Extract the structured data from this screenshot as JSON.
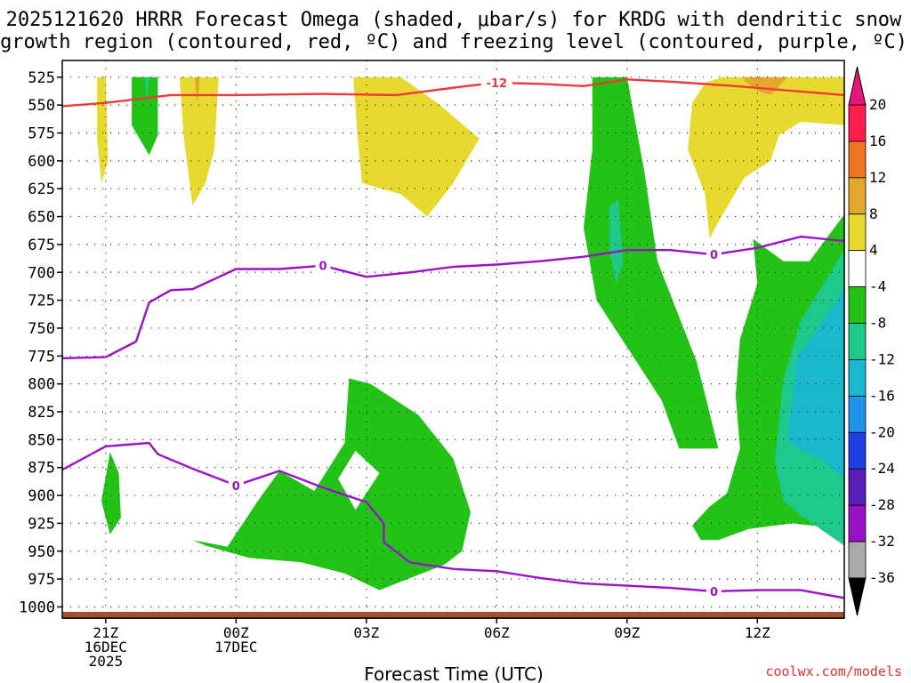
{
  "chart_data": {
    "type": "contour",
    "title_line1": "2025121620 HRRR Forecast Omega (shaded, μbar/s) for KRDG with dendritic snow",
    "title_line2": "growth region (contoured, red, ºC) and freezing level (contoured, purple, ºC)",
    "xlabel": "Forecast Time (UTC)",
    "credit": "coolwx.com/models",
    "y_unit": "hPa",
    "ylim": [
      1010,
      510
    ],
    "y_ticks": [
      525,
      550,
      575,
      600,
      625,
      650,
      675,
      700,
      725,
      750,
      775,
      800,
      825,
      850,
      875,
      900,
      925,
      950,
      975,
      1000
    ],
    "x_hours_range": [
      -1.0,
      17.0
    ],
    "x_ticks": [
      {
        "hour": 0,
        "lines": [
          "21Z",
          "16DEC",
          "2025"
        ]
      },
      {
        "hour": 3,
        "lines": [
          "00Z",
          "17DEC"
        ]
      },
      {
        "hour": 6,
        "lines": [
          "03Z"
        ]
      },
      {
        "hour": 9,
        "lines": [
          "06Z"
        ]
      },
      {
        "hour": 12,
        "lines": [
          "09Z"
        ]
      },
      {
        "hour": 15,
        "lines": [
          "12Z"
        ]
      }
    ],
    "colorbar": {
      "labels": [
        "20",
        "16",
        "12",
        "8",
        "4",
        "-4",
        "-8",
        "-12",
        "-16",
        "-20",
        "-24",
        "-28",
        "-32",
        "-36"
      ],
      "colors": [
        "#ff1f4f",
        "#ee7622",
        "#e3a72e",
        "#e8d92e",
        "#ffffff",
        "#22c316",
        "#1fc98c",
        "#1ab8cc",
        "#2094ea",
        "#1f3fe6",
        "#5a1fb8",
        "#9a11c8",
        "#a9a9a9"
      ],
      "top_arrow_color": "#e8157a",
      "bottom_arrow_color": "#000000"
    },
    "colors": {
      "dgz_line": "#ee3a3a",
      "freezing_line": "#9b12c8",
      "ground": "#a0522d",
      "up_weak": "#22c316",
      "up_moderate": "#1fc98c",
      "up_strong": "#1ab8cc",
      "down_weak": "#e8d92e",
      "down_moderate": "#e3a72e",
      "down_strong": "#ee7622"
    },
    "dgz_minus12_line": {
      "label": "-12",
      "label_at": [
        9.0,
        530
      ],
      "points": [
        [
          -1,
          551
        ],
        [
          0,
          548
        ],
        [
          1.5,
          541
        ],
        [
          3,
          541
        ],
        [
          5,
          540
        ],
        [
          6.7,
          541
        ],
        [
          8.3,
          533
        ],
        [
          9,
          530
        ],
        [
          10,
          531
        ],
        [
          11,
          533
        ],
        [
          12,
          527
        ],
        [
          13,
          529
        ],
        [
          14.5,
          533
        ],
        [
          17,
          541
        ]
      ]
    },
    "freezing_level_upper": {
      "label": "0",
      "label_positions": [
        [
          5.0,
          694
        ],
        [
          14.0,
          684
        ]
      ],
      "points": [
        [
          -1,
          777
        ],
        [
          0,
          776
        ],
        [
          0.7,
          762
        ],
        [
          1.0,
          727
        ],
        [
          1.5,
          716
        ],
        [
          2.0,
          715
        ],
        [
          3,
          697
        ],
        [
          4,
          697
        ],
        [
          5,
          694
        ],
        [
          6,
          704
        ],
        [
          7,
          700
        ],
        [
          8,
          695
        ],
        [
          9,
          693
        ],
        [
          10,
          690
        ],
        [
          11,
          686
        ],
        [
          12,
          680
        ],
        [
          13,
          680
        ],
        [
          14,
          684
        ],
        [
          15,
          678
        ],
        [
          16,
          668
        ],
        [
          17,
          672
        ]
      ]
    },
    "freezing_level_lower": {
      "label": "0",
      "label_positions": [
        [
          3.0,
          891
        ],
        [
          14.0,
          986
        ]
      ],
      "points": [
        [
          -1,
          877
        ],
        [
          0,
          856
        ],
        [
          1,
          853
        ],
        [
          1.2,
          863
        ],
        [
          2,
          876
        ],
        [
          3,
          891
        ],
        [
          4,
          878
        ],
        [
          5,
          893
        ],
        [
          6,
          906
        ],
        [
          6.4,
          925
        ],
        [
          6.4,
          942
        ],
        [
          7,
          960
        ],
        [
          8,
          966
        ],
        [
          9,
          968
        ],
        [
          10,
          974
        ],
        [
          11,
          979
        ],
        [
          12,
          981
        ],
        [
          13,
          983
        ],
        [
          14,
          986
        ],
        [
          15,
          985
        ],
        [
          16,
          985
        ],
        [
          17,
          992
        ]
      ]
    },
    "omega_regions": [
      {
        "name": "up-weak-a",
        "band": "up_weak",
        "points": [
          [
            -0.1,
            905
          ],
          [
            0.1,
            861
          ],
          [
            0.3,
            880
          ],
          [
            0.35,
            920
          ],
          [
            0.1,
            935
          ]
        ]
      },
      {
        "name": "up-weak-b",
        "band": "up_weak",
        "points": [
          [
            0.6,
            525
          ],
          [
            1.2,
            525
          ],
          [
            1.2,
            577
          ],
          [
            1.0,
            595
          ],
          [
            0.6,
            568
          ]
        ]
      },
      {
        "name": "up-weak-c",
        "band": "up_weak",
        "points": [
          [
            2.0,
            940
          ],
          [
            2.8,
            946
          ],
          [
            3.5,
            905
          ],
          [
            4.0,
            878
          ],
          [
            4.8,
            896
          ],
          [
            5.5,
            853
          ],
          [
            5.6,
            795
          ],
          [
            6.1,
            800
          ],
          [
            7.2,
            828
          ],
          [
            8.0,
            867
          ],
          [
            8.4,
            915
          ],
          [
            8.2,
            950
          ],
          [
            7.8,
            962
          ],
          [
            6.3,
            985
          ],
          [
            5.5,
            970
          ],
          [
            4.5,
            960
          ],
          [
            3.3,
            956
          ],
          [
            2.3,
            945
          ]
        ]
      },
      {
        "name": "up-weak-d",
        "band": "up_weak",
        "points": [
          [
            11.2,
            525
          ],
          [
            12.0,
            525
          ],
          [
            12.4,
            610
          ],
          [
            12.7,
            690
          ],
          [
            13.6,
            780
          ],
          [
            13.8,
            810
          ],
          [
            14.1,
            858
          ],
          [
            13.2,
            858
          ],
          [
            12.8,
            815
          ],
          [
            12.0,
            767
          ],
          [
            11.3,
            725
          ],
          [
            11.0,
            660
          ],
          [
            11.2,
            590
          ]
        ]
      },
      {
        "name": "up-weak-e",
        "band": "up_weak",
        "points": [
          [
            13.5,
            927
          ],
          [
            13.9,
            910
          ],
          [
            14.3,
            898
          ],
          [
            14.6,
            858
          ],
          [
            14.5,
            810
          ],
          [
            14.6,
            760
          ],
          [
            15.0,
            710
          ],
          [
            14.9,
            670
          ],
          [
            15.6,
            690
          ],
          [
            16.2,
            690
          ],
          [
            17.0,
            648
          ],
          [
            17.0,
            945
          ],
          [
            16.5,
            928
          ],
          [
            15.8,
            925
          ],
          [
            14.8,
            930
          ],
          [
            14.1,
            940
          ],
          [
            13.7,
            940
          ]
        ]
      },
      {
        "name": "up-moderate-a",
        "band": "up_moderate",
        "points": [
          [
            0.9,
            525
          ],
          [
            1.0,
            525
          ],
          [
            0.95,
            545
          ]
        ]
      },
      {
        "name": "up-moderate-b",
        "band": "up_moderate",
        "points": [
          [
            11.6,
            640
          ],
          [
            11.8,
            635
          ],
          [
            11.9,
            690
          ],
          [
            11.75,
            710
          ],
          [
            11.6,
            680
          ]
        ]
      },
      {
        "name": "up-moderate-c",
        "band": "up_moderate",
        "points": [
          [
            15.4,
            870
          ],
          [
            15.6,
            795
          ],
          [
            16.0,
            743
          ],
          [
            17.0,
            680
          ],
          [
            17.0,
            945
          ],
          [
            16.0,
            918
          ],
          [
            15.6,
            905
          ]
        ]
      },
      {
        "name": "up-strong-a",
        "band": "up_strong",
        "points": [
          [
            15.7,
            850
          ],
          [
            15.9,
            777
          ],
          [
            16.5,
            745
          ],
          [
            17.0,
            715
          ],
          [
            17.0,
            885
          ],
          [
            16.5,
            867
          ],
          [
            16.0,
            860
          ]
        ]
      },
      {
        "name": "down-weak-a",
        "band": "down_weak",
        "points": [
          [
            -0.2,
            525
          ],
          [
            0.0,
            525
          ],
          [
            0.05,
            600
          ],
          [
            -0.1,
            620
          ],
          [
            -0.2,
            580
          ]
        ]
      },
      {
        "name": "down-weak-b",
        "band": "down_weak",
        "points": [
          [
            1.7,
            525
          ],
          [
            2.6,
            525
          ],
          [
            2.5,
            590
          ],
          [
            2.3,
            620
          ],
          [
            2.0,
            640
          ],
          [
            1.8,
            580
          ]
        ]
      },
      {
        "name": "down-weak-c",
        "band": "down_weak",
        "points": [
          [
            5.7,
            525
          ],
          [
            6.8,
            525
          ],
          [
            7.7,
            550
          ],
          [
            8.6,
            580
          ],
          [
            8.0,
            620
          ],
          [
            7.4,
            650
          ],
          [
            6.8,
            630
          ],
          [
            5.9,
            620
          ],
          [
            5.8,
            580
          ]
        ]
      },
      {
        "name": "down-weak-d",
        "band": "down_weak",
        "points": [
          [
            14.2,
            525
          ],
          [
            16.9,
            525
          ],
          [
            17.0,
            525
          ],
          [
            17.0,
            568
          ],
          [
            16.0,
            565
          ],
          [
            15.5,
            577
          ],
          [
            15.3,
            600
          ],
          [
            14.7,
            615
          ],
          [
            14.1,
            655
          ],
          [
            13.9,
            670
          ],
          [
            13.8,
            630
          ],
          [
            13.4,
            590
          ],
          [
            13.5,
            548
          ],
          [
            13.8,
            530
          ]
        ]
      },
      {
        "name": "down-moderate-a",
        "band": "down_moderate",
        "points": [
          [
            14.7,
            525
          ],
          [
            15.7,
            525
          ],
          [
            15.3,
            541
          ],
          [
            15.0,
            537
          ],
          [
            14.7,
            528
          ]
        ]
      },
      {
        "name": "down-moderate-b",
        "band": "down_moderate",
        "points": [
          [
            2.05,
            525
          ],
          [
            2.15,
            525
          ],
          [
            2.15,
            535
          ],
          [
            2.1,
            548
          ]
        ]
      }
    ],
    "omega_holes": [
      {
        "name": "hole-a",
        "points": [
          [
            5.75,
            860
          ],
          [
            6.3,
            880
          ],
          [
            5.75,
            913
          ],
          [
            5.35,
            885
          ]
        ]
      }
    ]
  }
}
